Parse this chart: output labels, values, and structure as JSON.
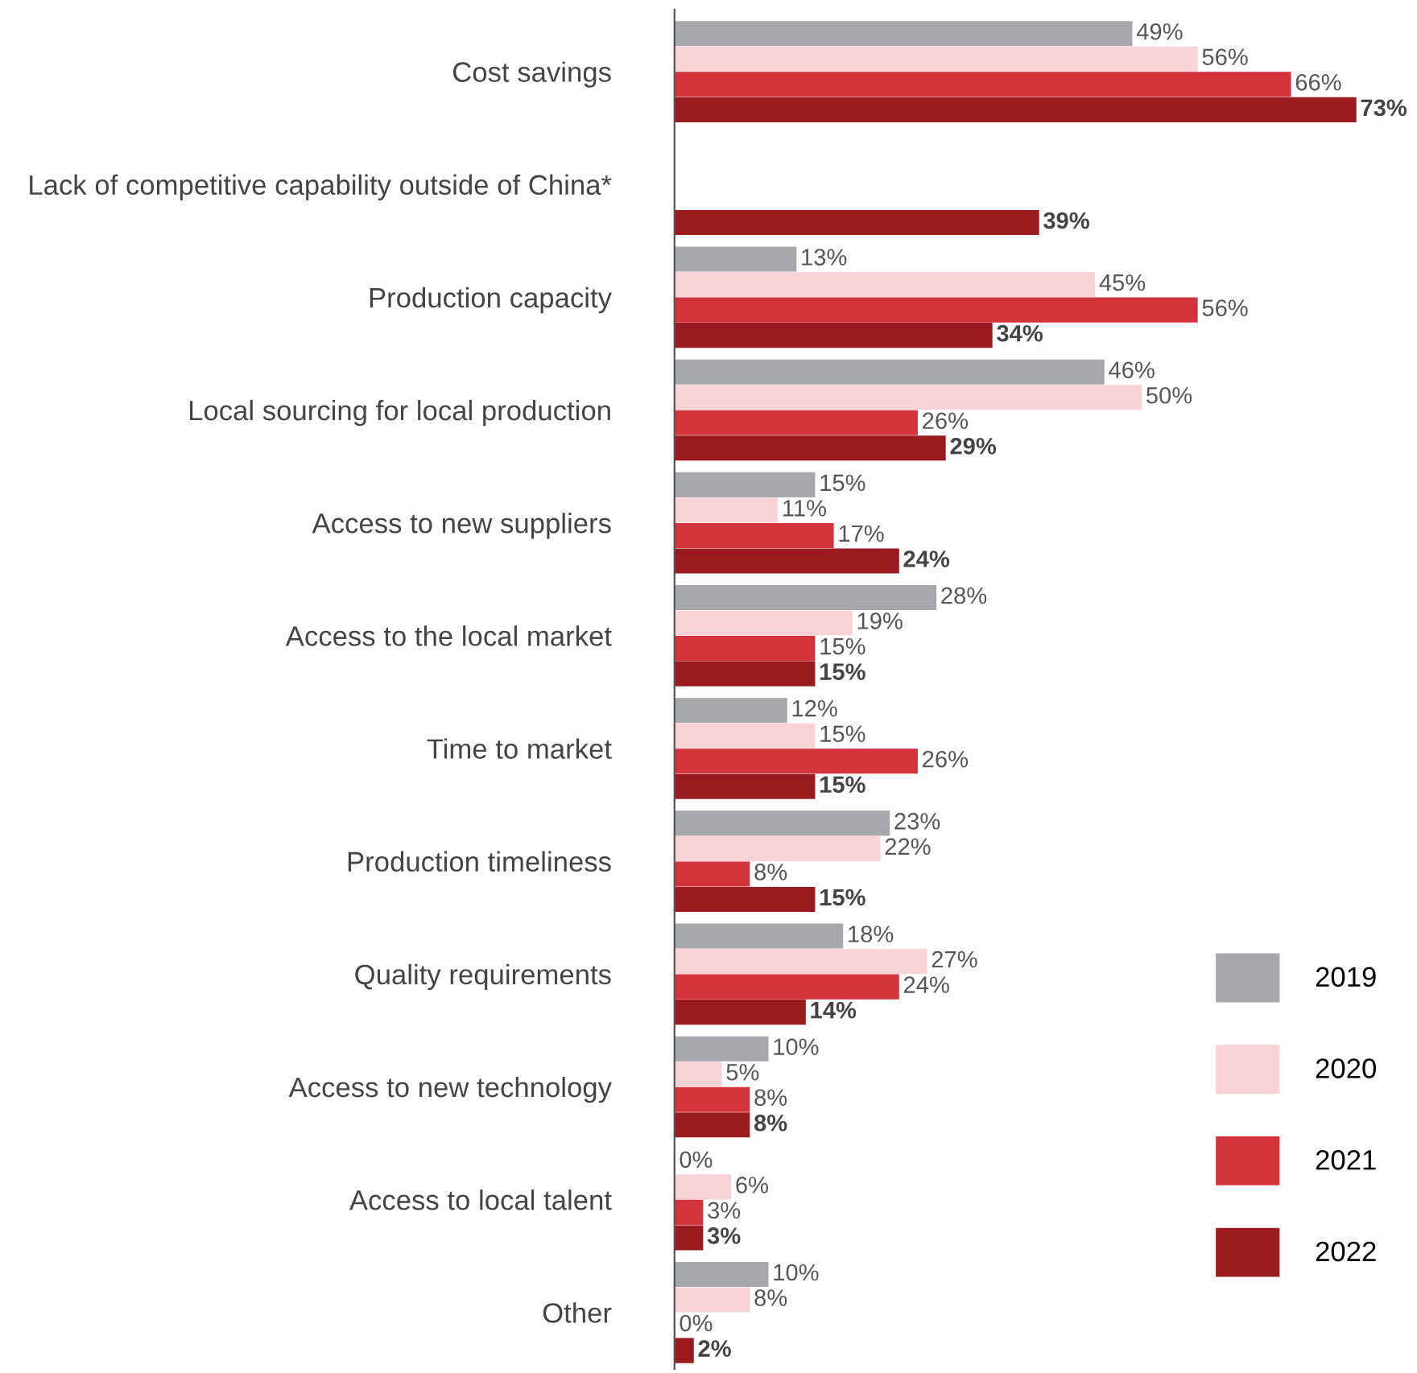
{
  "chart_data": {
    "type": "bar",
    "orientation": "horizontal",
    "legend": "bottom right",
    "grid": false,
    "categories": [
      "Cost savings",
      "Lack of competitive capability outside of China*",
      "Production capacity",
      "Local sourcing for local production",
      "Access to new suppliers",
      "Access to the local market",
      "Time to market",
      "Production timeliness",
      "Quality requirements",
      "Access to new technology",
      "Access to local talent",
      "Other"
    ],
    "series": [
      {
        "name": "2019",
        "color": "#a7a8ac",
        "values": [
          49,
          null,
          13,
          46,
          15,
          28,
          12,
          23,
          18,
          10,
          0,
          10
        ],
        "value_labels": [
          "49%",
          null,
          "13%",
          "46%",
          "15%",
          "28%",
          "12%",
          "23%",
          "18%",
          "10%",
          "0%",
          "10%"
        ]
      },
      {
        "name": "2020",
        "color": "#f9d3d6",
        "values": [
          56,
          null,
          45,
          50,
          11,
          19,
          15,
          22,
          27,
          5,
          6,
          8
        ],
        "value_labels": [
          "56%",
          null,
          "45%",
          "50%",
          "11%",
          "19%",
          "15%",
          "22%",
          "27%",
          "5%",
          "6%",
          "8%"
        ]
      },
      {
        "name": "2021",
        "color": "#d3343c",
        "values": [
          66,
          null,
          56,
          26,
          17,
          15,
          26,
          8,
          24,
          8,
          3,
          0
        ],
        "value_labels": [
          "66%",
          null,
          "56%",
          "26%",
          "17%",
          "15%",
          "26%",
          "8%",
          "24%",
          "8%",
          "3%",
          "0%"
        ]
      },
      {
        "name": "2022",
        "color": "#9a1a1e",
        "values": [
          73,
          39,
          34,
          29,
          24,
          15,
          15,
          15,
          14,
          8,
          3,
          2
        ],
        "value_labels": [
          "73%",
          "39%",
          "34%",
          "29%",
          "24%",
          "15%",
          "15%",
          "15%",
          "14%",
          "8%",
          "3%",
          "2%"
        ]
      }
    ]
  }
}
